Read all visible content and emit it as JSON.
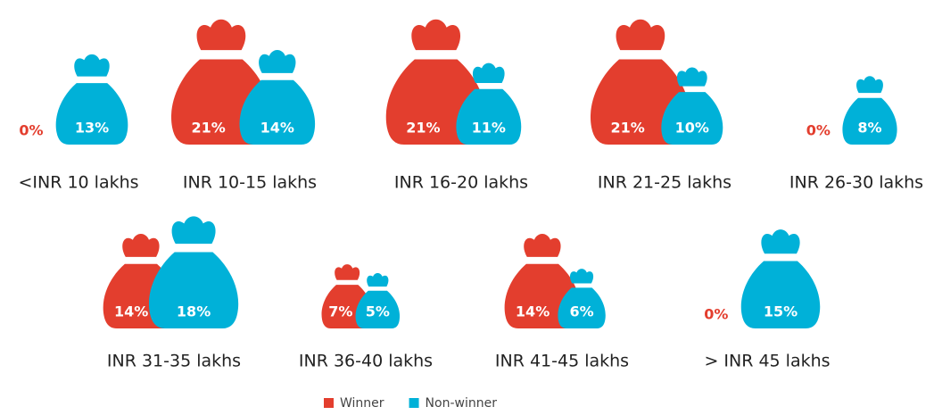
{
  "chart_data": {
    "type": "pictograph",
    "categories": [
      "<INR 10 lakhs",
      "INR 10-15 lakhs",
      "INR 16-20 lakhs",
      "INR 21-25 lakhs",
      "INR 26-30 lakhs",
      "INR 31-35 lakhs",
      "INR 36-40 lakhs",
      "INR 41-45 lakhs",
      "> INR 45 lakhs"
    ],
    "series": [
      {
        "name": "Winner",
        "color": "#e33e2e",
        "values": [
          0,
          21,
          21,
          21,
          0,
          14,
          7,
          14,
          0
        ],
        "value_labels": [
          "0%",
          "21%",
          "21%",
          "21%",
          "0%",
          "14%",
          "7%",
          "14%",
          "0%"
        ]
      },
      {
        "name": "Non-winner",
        "color": "#00b1d8",
        "values": [
          13,
          14,
          11,
          10,
          8,
          18,
          5,
          6,
          15
        ],
        "value_labels": [
          "13%",
          "14%",
          "11%",
          "10%",
          "8%",
          "18%",
          "5%",
          "6%",
          "15%"
        ]
      }
    ],
    "legend": "bottom"
  }
}
